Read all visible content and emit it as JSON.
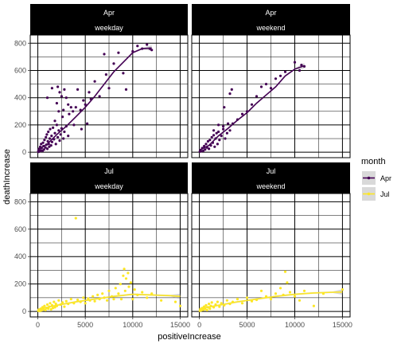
{
  "chart_data": {
    "type": "scatter",
    "xlabel": "positiveIncrease",
    "ylabel": "deathIncrease",
    "xlim": [
      -800,
      15800
    ],
    "ylim": [
      -40,
      860
    ],
    "x_ticks": [
      0,
      5000,
      10000,
      15000
    ],
    "y_ticks": [
      0,
      200,
      400,
      600,
      800
    ],
    "grid": true,
    "smooth": "loess with confidence band",
    "legend": {
      "title": "month",
      "position": "right",
      "entries": [
        {
          "label": "Apr",
          "color": "#440154"
        },
        {
          "label": "Jul",
          "color": "#fde725"
        }
      ]
    },
    "facet_labels": {
      "rows": [
        "Apr",
        "Jul"
      ],
      "cols": [
        "weekday",
        "weekend"
      ]
    },
    "panels": [
      {
        "row": "Apr",
        "col": "weekday",
        "series": "Apr",
        "points": [
          [
            50,
            5
          ],
          [
            80,
            15
          ],
          [
            100,
            3
          ],
          [
            150,
            25
          ],
          [
            200,
            8
          ],
          [
            250,
            40
          ],
          [
            300,
            12
          ],
          [
            350,
            60
          ],
          [
            400,
            30
          ],
          [
            500,
            10
          ],
          [
            550,
            70
          ],
          [
            600,
            45
          ],
          [
            650,
            20
          ],
          [
            700,
            90
          ],
          [
            800,
            35
          ],
          [
            850,
            110
          ],
          [
            900,
            55
          ],
          [
            950,
            130
          ],
          [
            1000,
            25
          ],
          [
            1050,
            80
          ],
          [
            1100,
            150
          ],
          [
            1150,
            60
          ],
          [
            1200,
            40
          ],
          [
            1250,
            100
          ],
          [
            1300,
            170
          ],
          [
            1400,
            50
          ],
          [
            1450,
            120
          ],
          [
            1500,
            75
          ],
          [
            1600,
            180
          ],
          [
            1700,
            95
          ],
          [
            1800,
            140
          ],
          [
            1900,
            60
          ],
          [
            2000,
            200
          ],
          [
            2100,
            110
          ],
          [
            2200,
            160
          ],
          [
            2300,
            85
          ],
          [
            2400,
            130
          ],
          [
            2500,
            175
          ],
          [
            2700,
            100
          ],
          [
            2800,
            150
          ],
          [
            3000,
            190
          ],
          [
            3200,
            120
          ],
          [
            1000,
            400
          ],
          [
            1500,
            470
          ],
          [
            1800,
            230
          ],
          [
            2000,
            360
          ],
          [
            2100,
            480
          ],
          [
            2200,
            300
          ],
          [
            2300,
            440
          ],
          [
            2500,
            410
          ],
          [
            2600,
            260
          ],
          [
            2700,
            310
          ],
          [
            2800,
            460
          ],
          [
            3000,
            400
          ],
          [
            3200,
            350
          ],
          [
            3300,
            280
          ],
          [
            3500,
            330
          ],
          [
            3700,
            300
          ],
          [
            3800,
            200
          ],
          [
            4000,
            330
          ],
          [
            4200,
            460
          ],
          [
            4500,
            310
          ],
          [
            4600,
            170
          ],
          [
            4800,
            380
          ],
          [
            5000,
            350
          ],
          [
            5200,
            210
          ],
          [
            5400,
            440
          ],
          [
            5600,
            390
          ],
          [
            6000,
            520
          ],
          [
            6500,
            410
          ],
          [
            7000,
            720
          ],
          [
            7200,
            570
          ],
          [
            7500,
            470
          ],
          [
            8000,
            650
          ],
          [
            8500,
            730
          ],
          [
            9000,
            580
          ],
          [
            9300,
            460
          ],
          [
            10000,
            740
          ],
          [
            10500,
            780
          ],
          [
            11000,
            760
          ],
          [
            11500,
            790
          ],
          [
            11800,
            760
          ],
          [
            12000,
            750
          ]
        ],
        "smooth": [
          [
            0,
            20
          ],
          [
            1000,
            60
          ],
          [
            2000,
            130
          ],
          [
            3000,
            190
          ],
          [
            4000,
            260
          ],
          [
            5000,
            330
          ],
          [
            6000,
            410
          ],
          [
            7000,
            500
          ],
          [
            8000,
            590
          ],
          [
            9000,
            660
          ],
          [
            10000,
            730
          ],
          [
            11000,
            760
          ],
          [
            12000,
            765
          ]
        ]
      },
      {
        "row": "Apr",
        "col": "weekend",
        "series": "Apr",
        "points": [
          [
            50,
            5
          ],
          [
            100,
            15
          ],
          [
            200,
            8
          ],
          [
            300,
            30
          ],
          [
            400,
            10
          ],
          [
            500,
            45
          ],
          [
            600,
            20
          ],
          [
            700,
            60
          ],
          [
            800,
            35
          ],
          [
            900,
            80
          ],
          [
            1000,
            25
          ],
          [
            1100,
            90
          ],
          [
            1200,
            50
          ],
          [
            1300,
            110
          ],
          [
            1400,
            70
          ],
          [
            1500,
            125
          ],
          [
            1600,
            40
          ],
          [
            1700,
            100
          ],
          [
            1800,
            140
          ],
          [
            1900,
            60
          ],
          [
            2000,
            150
          ],
          [
            2100,
            90
          ],
          [
            2300,
            120
          ],
          [
            2500,
            170
          ],
          [
            2700,
            100
          ],
          [
            2900,
            140
          ],
          [
            3200,
            160
          ],
          [
            1500,
            160
          ],
          [
            2000,
            200
          ],
          [
            2500,
            190
          ],
          [
            3000,
            210
          ],
          [
            3500,
            210
          ],
          [
            4000,
            240
          ],
          [
            4500,
            280
          ],
          [
            5000,
            300
          ],
          [
            5500,
            350
          ],
          [
            6000,
            410
          ],
          [
            6500,
            480
          ],
          [
            7000,
            500
          ],
          [
            7500,
            470
          ],
          [
            8000,
            540
          ],
          [
            8500,
            560
          ],
          [
            9000,
            590
          ],
          [
            10000,
            660
          ],
          [
            10500,
            600
          ],
          [
            10700,
            640
          ],
          [
            11000,
            630
          ],
          [
            3400,
            460
          ],
          [
            3200,
            430
          ],
          [
            2600,
            330
          ]
        ],
        "smooth": [
          [
            0,
            15
          ],
          [
            1000,
            50
          ],
          [
            2000,
            120
          ],
          [
            3000,
            175
          ],
          [
            4000,
            235
          ],
          [
            5000,
            290
          ],
          [
            6000,
            360
          ],
          [
            7000,
            420
          ],
          [
            8000,
            480
          ],
          [
            9000,
            560
          ],
          [
            10000,
            610
          ],
          [
            11000,
            635
          ]
        ]
      },
      {
        "row": "Jul",
        "col": "weekday",
        "series": "Jul",
        "points": [
          [
            50,
            5
          ],
          [
            100,
            12
          ],
          [
            200,
            3
          ],
          [
            300,
            20
          ],
          [
            400,
            8
          ],
          [
            500,
            30
          ],
          [
            600,
            15
          ],
          [
            700,
            40
          ],
          [
            800,
            10
          ],
          [
            900,
            25
          ],
          [
            1000,
            50
          ],
          [
            1100,
            20
          ],
          [
            1200,
            35
          ],
          [
            1300,
            60
          ],
          [
            1400,
            15
          ],
          [
            1500,
            45
          ],
          [
            1600,
            25
          ],
          [
            1700,
            70
          ],
          [
            1800,
            30
          ],
          [
            1900,
            55
          ],
          [
            2000,
            40
          ],
          [
            2200,
            80
          ],
          [
            2400,
            50
          ],
          [
            2600,
            65
          ],
          [
            2800,
            35
          ],
          [
            3000,
            75
          ],
          [
            3200,
            55
          ],
          [
            3500,
            90
          ],
          [
            3800,
            60
          ],
          [
            4000,
            680
          ],
          [
            4200,
            85
          ],
          [
            4500,
            70
          ],
          [
            4800,
            100
          ],
          [
            5000,
            60
          ],
          [
            5300,
            95
          ],
          [
            5500,
            80
          ],
          [
            5800,
            110
          ],
          [
            6000,
            75
          ],
          [
            6300,
            120
          ],
          [
            6500,
            90
          ],
          [
            6800,
            130
          ],
          [
            7000,
            100
          ],
          [
            7300,
            80
          ],
          [
            7500,
            150
          ],
          [
            7800,
            110
          ],
          [
            8000,
            90
          ],
          [
            8200,
            170
          ],
          [
            8500,
            130
          ],
          [
            8700,
            200
          ],
          [
            8800,
            90
          ],
          [
            9000,
            260
          ],
          [
            9100,
            310
          ],
          [
            9200,
            150
          ],
          [
            9300,
            240
          ],
          [
            9500,
            280
          ],
          [
            9600,
            180
          ],
          [
            9800,
            210
          ],
          [
            10000,
            90
          ],
          [
            10200,
            160
          ],
          [
            10500,
            120
          ],
          [
            11000,
            140
          ],
          [
            11500,
            100
          ],
          [
            12000,
            130
          ],
          [
            13000,
            80
          ],
          [
            14500,
            70
          ],
          [
            15000,
            40
          ]
        ],
        "smooth": [
          [
            0,
            15
          ],
          [
            2000,
            45
          ],
          [
            4000,
            70
          ],
          [
            6000,
            90
          ],
          [
            8000,
            110
          ],
          [
            10000,
            125
          ],
          [
            12000,
            120
          ],
          [
            14000,
            115
          ],
          [
            15000,
            110
          ]
        ]
      },
      {
        "row": "Jul",
        "col": "weekend",
        "series": "Jul",
        "points": [
          [
            50,
            5
          ],
          [
            100,
            15
          ],
          [
            200,
            8
          ],
          [
            300,
            25
          ],
          [
            400,
            12
          ],
          [
            500,
            35
          ],
          [
            600,
            18
          ],
          [
            700,
            45
          ],
          [
            800,
            10
          ],
          [
            900,
            30
          ],
          [
            1000,
            55
          ],
          [
            1100,
            20
          ],
          [
            1200,
            40
          ],
          [
            1300,
            65
          ],
          [
            1500,
            30
          ],
          [
            1700,
            50
          ],
          [
            1900,
            70
          ],
          [
            2100,
            35
          ],
          [
            2300,
            60
          ],
          [
            2600,
            45
          ],
          [
            2900,
            80
          ],
          [
            3200,
            55
          ],
          [
            3500,
            70
          ],
          [
            4000,
            90
          ],
          [
            4500,
            60
          ],
          [
            5000,
            100
          ],
          [
            5500,
            75
          ],
          [
            6000,
            85
          ],
          [
            6500,
            150
          ],
          [
            7000,
            110
          ],
          [
            7500,
            90
          ],
          [
            8000,
            130
          ],
          [
            8500,
            170
          ],
          [
            8800,
            120
          ],
          [
            9000,
            290
          ],
          [
            9200,
            210
          ],
          [
            9500,
            140
          ],
          [
            10000,
            110
          ],
          [
            10500,
            80
          ],
          [
            11000,
            150
          ],
          [
            12000,
            40
          ],
          [
            13000,
            130
          ],
          [
            15000,
            160
          ]
        ],
        "smooth": [
          [
            0,
            20
          ],
          [
            2000,
            45
          ],
          [
            4000,
            70
          ],
          [
            6000,
            90
          ],
          [
            8000,
            110
          ],
          [
            10000,
            125
          ],
          [
            12000,
            135
          ],
          [
            14000,
            140
          ],
          [
            15000,
            142
          ]
        ]
      }
    ]
  }
}
